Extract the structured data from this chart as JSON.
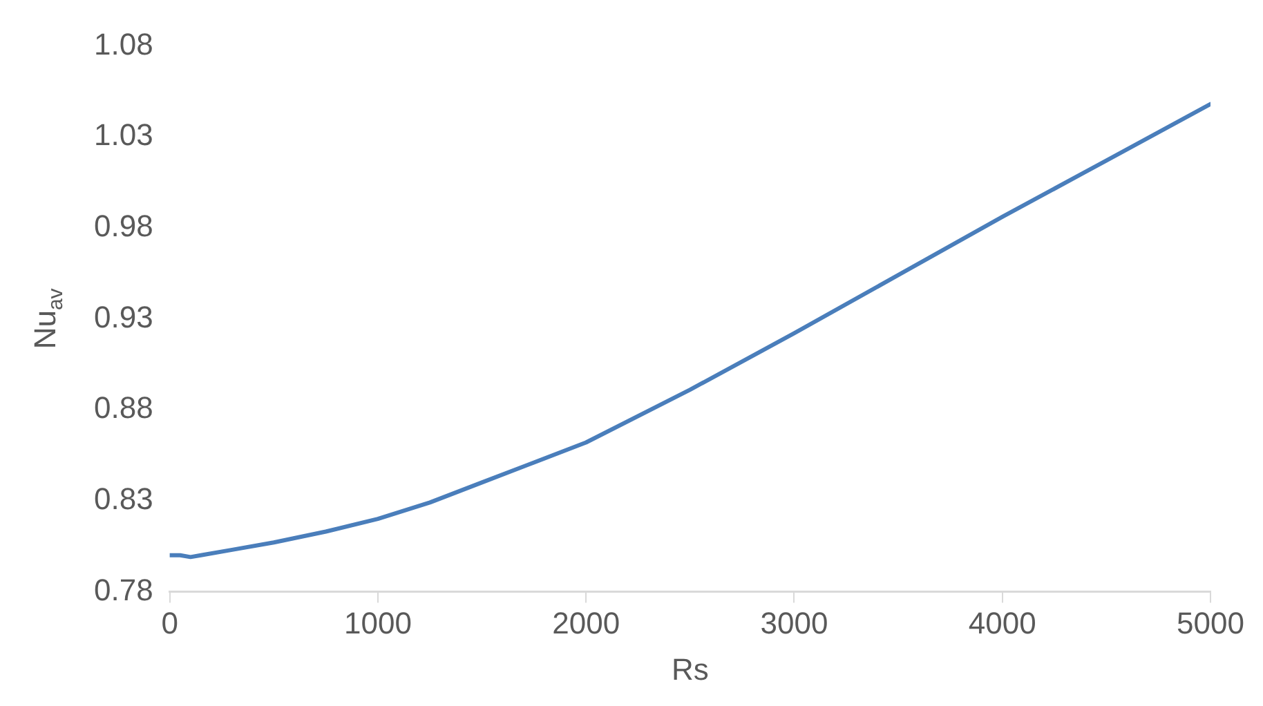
{
  "chart_data": {
    "type": "line",
    "xlabel": "Rs",
    "ylabel": "Nu$_{av}$",
    "xlim": [
      0,
      5000
    ],
    "xticks": [
      0,
      1000,
      2000,
      3000,
      4000,
      5000
    ],
    "ylim": [
      0.78,
      1.08
    ],
    "yticks": [
      0.78,
      0.83,
      0.88,
      0.93,
      0.98,
      1.03,
      1.08
    ],
    "grid": false,
    "legend": false,
    "marker": "none",
    "line_style": "solid",
    "series": [
      {
        "color": "#4a7ebb",
        "x": [
          0,
          50,
          100,
          150,
          300,
          500,
          750,
          1000,
          1250,
          1500,
          1750,
          2000,
          2500,
          3000,
          3500,
          4000,
          4500,
          5000
        ],
        "values": [
          0.8,
          0.8,
          0.799,
          0.8,
          0.803,
          0.807,
          0.813,
          0.82,
          0.829,
          0.84,
          0.851,
          0.862,
          0.891,
          0.922,
          0.954,
          0.986,
          1.017,
          1.048
        ]
      }
    ]
  }
}
